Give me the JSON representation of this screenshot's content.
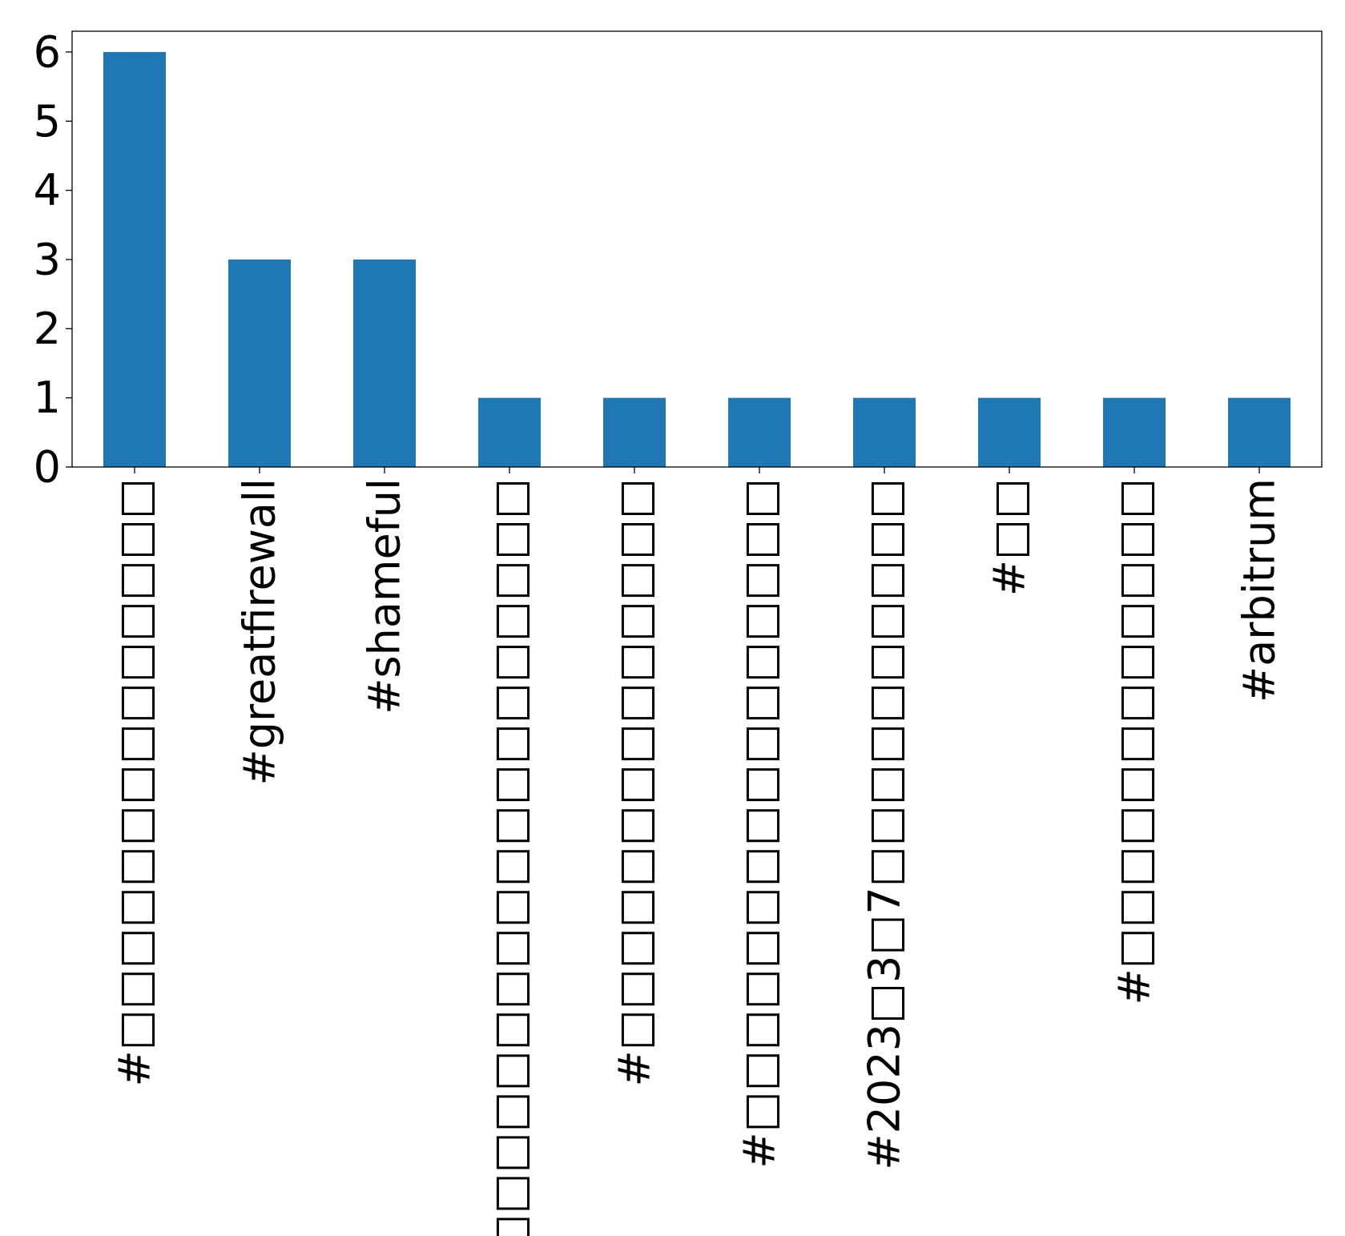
{
  "chart_data": {
    "type": "bar",
    "title": "",
    "xlabel": "",
    "ylabel": "",
    "categories": [
      "#□□□□□□□□□□□□□□",
      "#greatfirewall",
      "#shameful",
      "#□□□□□□□□□□□□□□□□□□□",
      "#□□□□□□□□□□□□□□",
      "#□□□□□□□□□□□□□□□□",
      "#2023□3□7□□□□□□□□□□",
      "#□□",
      "#□□□□□□□□□□□□",
      "#arbitrum"
    ],
    "values": [
      6,
      3,
      3,
      1,
      1,
      1,
      1,
      1,
      1,
      1
    ],
    "ylim": [
      0,
      6.3
    ],
    "yticks": [
      "0",
      "1",
      "2",
      "3",
      "4",
      "5",
      "6"
    ],
    "bar_color": "#1f77b4",
    "grid": false,
    "legend": "none"
  }
}
